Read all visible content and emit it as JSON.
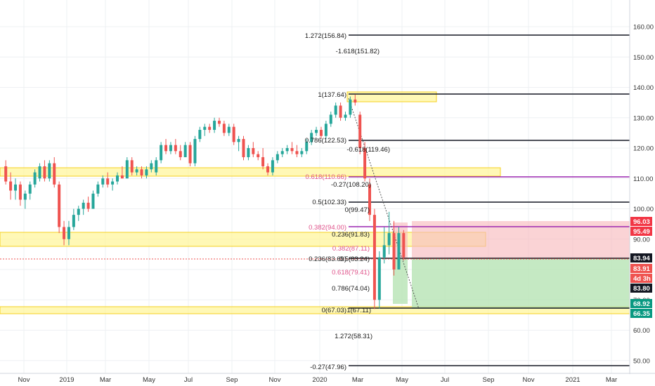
{
  "chart_data": {
    "type": "candlestick",
    "title": "",
    "y_axis": {
      "ticks": [
        160,
        150,
        140,
        130,
        120,
        110,
        100,
        90,
        80,
        70,
        60,
        50
      ],
      "tick_labels": [
        "160.00",
        "150.00",
        "140.00",
        "130.00",
        "120.00",
        "110.00",
        "100.00",
        "90.00",
        "80.00",
        "70.00",
        "60.00",
        "50.00"
      ],
      "ylim": [
        47.0,
        167.0
      ]
    },
    "x_axis": {
      "tick_labels": [
        "Nov",
        "2019",
        "Mar",
        "May",
        "Jul",
        "Sep",
        "Nov",
        "2020",
        "Mar",
        "May",
        "Jul",
        "Sep",
        "Nov",
        "2021",
        "Mar"
      ]
    },
    "candles": [
      {
        "t": "2018-10-05",
        "o": 114,
        "h": 116,
        "l": 108,
        "c": 109
      },
      {
        "t": "2018-10-12",
        "o": 109,
        "h": 112,
        "l": 103,
        "c": 106
      },
      {
        "t": "2018-10-19",
        "o": 106,
        "h": 110,
        "l": 103,
        "c": 108
      },
      {
        "t": "2018-10-26",
        "o": 108,
        "h": 109,
        "l": 101,
        "c": 103
      },
      {
        "t": "2018-11-02",
        "o": 103,
        "h": 106,
        "l": 100,
        "c": 105
      },
      {
        "t": "2018-11-09",
        "o": 105,
        "h": 109,
        "l": 103,
        "c": 108
      },
      {
        "t": "2018-11-16",
        "o": 108,
        "h": 113,
        "l": 107,
        "c": 112
      },
      {
        "t": "2018-11-23",
        "o": 110,
        "h": 115,
        "l": 109,
        "c": 114
      },
      {
        "t": "2018-11-30",
        "o": 114,
        "h": 116,
        "l": 109,
        "c": 110
      },
      {
        "t": "2018-12-07",
        "o": 110,
        "h": 116,
        "l": 109,
        "c": 115
      },
      {
        "t": "2018-12-14",
        "o": 115,
        "h": 117,
        "l": 107,
        "c": 108
      },
      {
        "t": "2018-12-21",
        "o": 108,
        "h": 109,
        "l": 92,
        "c": 94
      },
      {
        "t": "2018-12-28",
        "o": 94,
        "h": 96,
        "l": 88,
        "c": 90
      },
      {
        "t": "2019-01-04",
        "o": 90,
        "h": 96,
        "l": 88,
        "c": 94
      },
      {
        "t": "2019-01-11",
        "o": 94,
        "h": 100,
        "l": 93,
        "c": 98
      },
      {
        "t": "2019-01-18",
        "o": 98,
        "h": 101,
        "l": 96,
        "c": 100
      },
      {
        "t": "2019-01-25",
        "o": 100,
        "h": 103,
        "l": 98,
        "c": 102
      },
      {
        "t": "2019-02-01",
        "o": 102,
        "h": 104,
        "l": 99,
        "c": 100
      },
      {
        "t": "2019-02-08",
        "o": 100,
        "h": 106,
        "l": 100,
        "c": 105
      },
      {
        "t": "2019-02-15",
        "o": 105,
        "h": 109,
        "l": 104,
        "c": 108
      },
      {
        "t": "2019-02-22",
        "o": 108,
        "h": 111,
        "l": 107,
        "c": 110
      },
      {
        "t": "2019-03-01",
        "o": 110,
        "h": 112,
        "l": 107,
        "c": 108
      },
      {
        "t": "2019-03-08",
        "o": 108,
        "h": 110,
        "l": 106,
        "c": 109
      },
      {
        "t": "2019-03-15",
        "o": 109,
        "h": 112,
        "l": 108,
        "c": 111
      },
      {
        "t": "2019-03-22",
        "o": 111,
        "h": 114,
        "l": 110,
        "c": 110
      },
      {
        "t": "2019-03-29",
        "o": 110,
        "h": 117,
        "l": 110,
        "c": 116
      },
      {
        "t": "2019-04-05",
        "o": 116,
        "h": 117,
        "l": 111,
        "c": 112
      },
      {
        "t": "2019-04-12",
        "o": 112,
        "h": 114,
        "l": 111,
        "c": 113
      },
      {
        "t": "2019-04-19",
        "o": 113,
        "h": 114,
        "l": 110,
        "c": 111
      },
      {
        "t": "2019-04-26",
        "o": 111,
        "h": 114,
        "l": 110,
        "c": 113
      },
      {
        "t": "2019-05-03",
        "o": 113,
        "h": 116,
        "l": 112,
        "c": 115
      },
      {
        "t": "2019-05-10",
        "o": 112,
        "h": 117,
        "l": 111,
        "c": 116
      },
      {
        "t": "2019-05-17",
        "o": 116,
        "h": 122,
        "l": 115,
        "c": 121
      },
      {
        "t": "2019-05-24",
        "o": 121,
        "h": 123,
        "l": 118,
        "c": 119
      },
      {
        "t": "2019-05-31",
        "o": 119,
        "h": 122,
        "l": 118,
        "c": 121
      },
      {
        "t": "2019-06-07",
        "o": 121,
        "h": 123,
        "l": 118,
        "c": 119
      },
      {
        "t": "2019-06-14",
        "o": 119,
        "h": 121,
        "l": 116,
        "c": 117
      },
      {
        "t": "2019-06-21",
        "o": 117,
        "h": 122,
        "l": 117,
        "c": 121
      },
      {
        "t": "2019-06-28",
        "o": 121,
        "h": 122,
        "l": 114,
        "c": 115
      },
      {
        "t": "2019-07-05",
        "o": 115,
        "h": 124,
        "l": 114,
        "c": 123
      },
      {
        "t": "2019-07-12",
        "o": 123,
        "h": 127,
        "l": 122,
        "c": 126
      },
      {
        "t": "2019-07-19",
        "o": 126,
        "h": 128,
        "l": 124,
        "c": 127
      },
      {
        "t": "2019-07-26",
        "o": 127,
        "h": 128,
        "l": 125,
        "c": 126
      },
      {
        "t": "2019-08-02",
        "o": 126,
        "h": 130,
        "l": 125,
        "c": 129
      },
      {
        "t": "2019-08-09",
        "o": 129,
        "h": 130,
        "l": 127,
        "c": 128
      },
      {
        "t": "2019-08-16",
        "o": 128,
        "h": 129,
        "l": 124,
        "c": 125
      },
      {
        "t": "2019-08-23",
        "o": 125,
        "h": 128,
        "l": 124,
        "c": 127
      },
      {
        "t": "2019-08-30",
        "o": 127,
        "h": 128,
        "l": 121,
        "c": 122
      },
      {
        "t": "2019-09-06",
        "o": 122,
        "h": 124,
        "l": 119,
        "c": 123
      },
      {
        "t": "2019-09-13",
        "o": 123,
        "h": 124,
        "l": 116,
        "c": 117
      },
      {
        "t": "2019-09-20",
        "o": 117,
        "h": 121,
        "l": 116,
        "c": 120
      },
      {
        "t": "2019-09-27",
        "o": 120,
        "h": 122,
        "l": 117,
        "c": 118
      },
      {
        "t": "2019-10-04",
        "o": 118,
        "h": 119,
        "l": 116,
        "c": 117
      },
      {
        "t": "2019-10-11",
        "o": 117,
        "h": 120,
        "l": 113,
        "c": 114
      },
      {
        "t": "2019-10-18",
        "o": 114,
        "h": 115,
        "l": 111,
        "c": 112
      },
      {
        "t": "2019-10-25",
        "o": 112,
        "h": 117,
        "l": 111,
        "c": 116
      },
      {
        "t": "2019-11-01",
        "o": 116,
        "h": 119,
        "l": 115,
        "c": 118
      },
      {
        "t": "2019-11-08",
        "o": 118,
        "h": 120,
        "l": 117,
        "c": 119
      },
      {
        "t": "2019-11-15",
        "o": 119,
        "h": 121,
        "l": 118,
        "c": 120
      },
      {
        "t": "2019-11-22",
        "o": 120,
        "h": 122,
        "l": 118,
        "c": 119
      },
      {
        "t": "2019-11-29",
        "o": 119,
        "h": 121,
        "l": 117,
        "c": 118
      },
      {
        "t": "2019-12-06",
        "o": 118,
        "h": 120,
        "l": 117,
        "c": 119
      },
      {
        "t": "2019-12-13",
        "o": 119,
        "h": 123,
        "l": 118,
        "c": 122
      },
      {
        "t": "2019-12-20",
        "o": 122,
        "h": 126,
        "l": 121,
        "c": 125
      },
      {
        "t": "2019-12-27",
        "o": 125,
        "h": 127,
        "l": 124,
        "c": 126
      },
      {
        "t": "2020-01-03",
        "o": 126,
        "h": 127,
        "l": 123,
        "c": 124
      },
      {
        "t": "2020-01-10",
        "o": 124,
        "h": 129,
        "l": 123,
        "c": 128
      },
      {
        "t": "2020-01-17",
        "o": 128,
        "h": 132,
        "l": 127,
        "c": 131
      },
      {
        "t": "2020-01-24",
        "o": 131,
        "h": 135,
        "l": 130,
        "c": 134
      },
      {
        "t": "2020-01-31",
        "o": 134,
        "h": 135,
        "l": 129,
        "c": 130
      },
      {
        "t": "2020-02-07",
        "o": 130,
        "h": 132,
        "l": 129,
        "c": 131
      },
      {
        "t": "2020-02-14",
        "o": 131,
        "h": 137,
        "l": 130,
        "c": 136
      },
      {
        "t": "2020-02-21",
        "o": 136,
        "h": 137.6,
        "l": 134,
        "c": 135
      },
      {
        "t": "2020-02-28",
        "o": 131,
        "h": 132,
        "l": 118,
        "c": 120
      },
      {
        "t": "2020-03-06",
        "o": 120,
        "h": 122,
        "l": 109,
        "c": 110
      },
      {
        "t": "2020-03-13",
        "o": 108,
        "h": 110,
        "l": 96,
        "c": 98
      },
      {
        "t": "2020-03-20",
        "o": 98,
        "h": 100,
        "l": 67,
        "c": 70
      },
      {
        "t": "2020-03-27",
        "o": 70,
        "h": 86,
        "l": 67.1,
        "c": 84
      },
      {
        "t": "2020-04-03",
        "o": 84,
        "h": 94,
        "l": 82,
        "c": 88
      },
      {
        "t": "2020-04-10",
        "o": 88,
        "h": 99,
        "l": 85,
        "c": 92
      },
      {
        "t": "2020-04-17",
        "o": 92,
        "h": 96,
        "l": 78,
        "c": 80
      },
      {
        "t": "2020-04-24",
        "o": 80,
        "h": 94,
        "l": 80,
        "c": 92
      },
      {
        "t": "2020-05-01",
        "o": 92,
        "h": 93,
        "l": 83,
        "c": 84
      }
    ],
    "fib_levels": [
      {
        "label": "1.272(156.84)",
        "value": 156.84
      },
      {
        "label": "-1.618(151.82)",
        "value": 151.82
      },
      {
        "label": "1(137.64)",
        "value": 137.64
      },
      {
        "label": "0.786(122.53)",
        "value": 122.53
      },
      {
        "label": "-0.618(119.46)",
        "value": 119.46
      },
      {
        "label": "0.618(110.66)",
        "value": 110.66
      },
      {
        "label": "-0.27(108.20)",
        "value": 108.2
      },
      {
        "label": "0.5(102.33)",
        "value": 102.33
      },
      {
        "label": "0(99.47)",
        "value": 99.47
      },
      {
        "label": "0.382(94.00)",
        "value": 94.0
      },
      {
        "label": "0.236(91.83)",
        "value": 91.83
      },
      {
        "label": "0.382(87.11)",
        "value": 87.11
      },
      {
        "label": "0.5(83.24)",
        "value": 83.24
      },
      {
        "label": "0.236(83.69)",
        "value": 83.69
      },
      {
        "label": "0.618(79.41)",
        "value": 79.41
      },
      {
        "label": "0.786(74.04)",
        "value": 74.04
      },
      {
        "label": "0(67.03)",
        "value": 67.03
      },
      {
        "label": "1(67.11)",
        "value": 67.11
      },
      {
        "label": "1.272(58.31)",
        "value": 58.31
      },
      {
        "label": "-0.27(47.96)",
        "value": 47.96
      }
    ],
    "price_tags": [
      {
        "label": "96.03",
        "value": 96.03,
        "color": "#f23645"
      },
      {
        "label": "95.49",
        "value": 95.49,
        "color": "#f23645"
      },
      {
        "label": "83.94",
        "value": 83.94,
        "color": "#131722"
      },
      {
        "label": "83.91",
        "value": 83.91,
        "color": "#ef5350"
      },
      {
        "label": "4d 3h",
        "value": 83.91,
        "color": "#ef5350"
      },
      {
        "label": "83.80",
        "value": 83.8,
        "color": "#131722"
      },
      {
        "label": "68.92",
        "value": 68.92,
        "color": "#089981"
      },
      {
        "label": "66.35",
        "value": 66.35,
        "color": "#089981"
      }
    ],
    "colors": {
      "up": "#26a69a",
      "down": "#ef5350",
      "zone": "#fff59d",
      "zone_border": "#f5d020"
    }
  }
}
